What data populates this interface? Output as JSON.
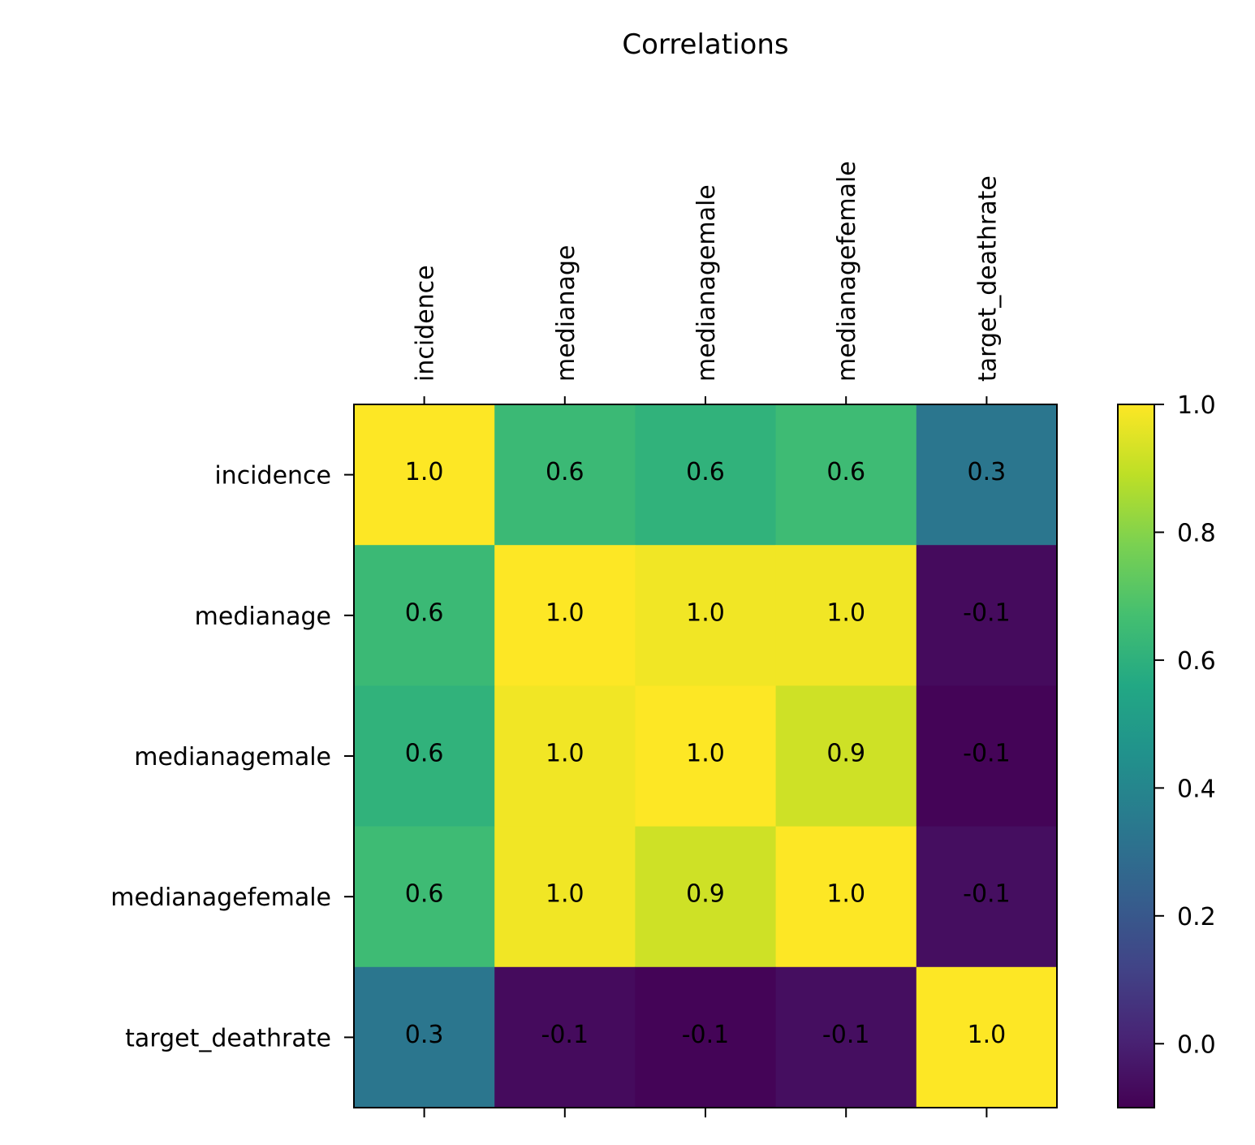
{
  "chart_data": {
    "type": "heatmap",
    "title": "Correlations",
    "row_labels": [
      "incidence",
      "medianage",
      "medianagemale",
      "medianagefemale",
      "target_deathrate"
    ],
    "col_labels": [
      "incidence",
      "medianage",
      "medianagemale",
      "medianagefemale",
      "target_deathrate"
    ],
    "values": [
      [
        1.0,
        0.64,
        0.61,
        0.65,
        0.33
      ],
      [
        0.64,
        1.0,
        0.98,
        0.98,
        -0.07
      ],
      [
        0.61,
        0.98,
        1.0,
        0.92,
        -0.09
      ],
      [
        0.65,
        0.98,
        0.92,
        1.0,
        -0.06
      ],
      [
        0.33,
        -0.07,
        -0.09,
        -0.06,
        1.0
      ]
    ],
    "cell_labels": [
      [
        "1.0",
        "0.6",
        "0.6",
        "0.6",
        "0.3"
      ],
      [
        "0.6",
        "1.0",
        "1.0",
        "1.0",
        "-0.1"
      ],
      [
        "0.6",
        "1.0",
        "1.0",
        "0.9",
        "-0.1"
      ],
      [
        "0.6",
        "1.0",
        "0.9",
        "1.0",
        "-0.1"
      ],
      [
        "0.3",
        "-0.1",
        "-0.1",
        "-0.1",
        "1.0"
      ]
    ],
    "colormap": "viridis",
    "colorbar": {
      "range": [
        -0.1,
        1.0
      ],
      "ticks": [
        0.0,
        0.2,
        0.4,
        0.6,
        0.8,
        1.0
      ],
      "tick_labels": [
        "0.0",
        "0.2",
        "0.4",
        "0.6",
        "0.8",
        "1.0"
      ]
    },
    "x_tick_position": "top",
    "grid": false
  }
}
